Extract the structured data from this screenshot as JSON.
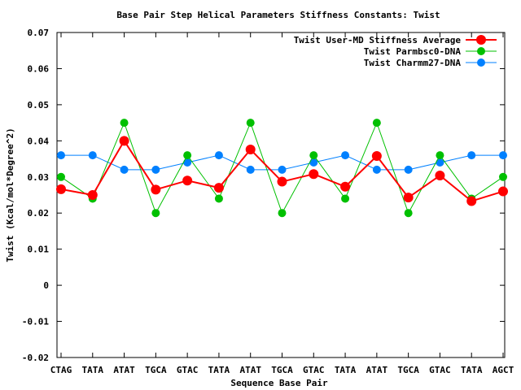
{
  "chart_data": {
    "type": "line",
    "title": "Base Pair Step Helical Parameters Stiffness Constants: Twist",
    "xlabel": "Sequence Base Pair",
    "ylabel": "Twist (Kcal/mol*Degree^2)",
    "categories": [
      "CTAG",
      "TATA",
      "ATAT",
      "TGCA",
      "GTAC",
      "TATA",
      "ATAT",
      "TGCA",
      "GTAC",
      "TATA",
      "ATAT",
      "TGCA",
      "GTAC",
      "TATA",
      "AGCT"
    ],
    "ylim": [
      -0.02,
      0.07
    ],
    "yticks": [
      "-0.02",
      "-0.01",
      "0",
      "0.01",
      "0.02",
      "0.03",
      "0.04",
      "0.05",
      "0.06",
      "0.07"
    ],
    "legend_position": "top-right",
    "series": [
      {
        "name": "Twist User-MD Stiffness Average",
        "color": "#ff0000",
        "values": [
          0.0266,
          0.025,
          0.04,
          0.0265,
          0.029,
          0.027,
          0.0376,
          0.0287,
          0.0308,
          0.0273,
          0.0358,
          0.0243,
          0.0304,
          0.0233,
          0.026
        ]
      },
      {
        "name": "Twist Parmbsc0-DNA",
        "color": "#00c000",
        "values": [
          0.03,
          0.024,
          0.045,
          0.02,
          0.036,
          0.024,
          0.045,
          0.02,
          0.036,
          0.024,
          0.045,
          0.02,
          0.036,
          0.024,
          0.03
        ]
      },
      {
        "name": "Twist Charmm27-DNA",
        "color": "#0080ff",
        "values": [
          0.036,
          0.036,
          0.032,
          0.032,
          0.034,
          0.036,
          0.032,
          0.032,
          0.034,
          0.036,
          0.032,
          0.032,
          0.034,
          0.036,
          0.036
        ]
      }
    ]
  }
}
